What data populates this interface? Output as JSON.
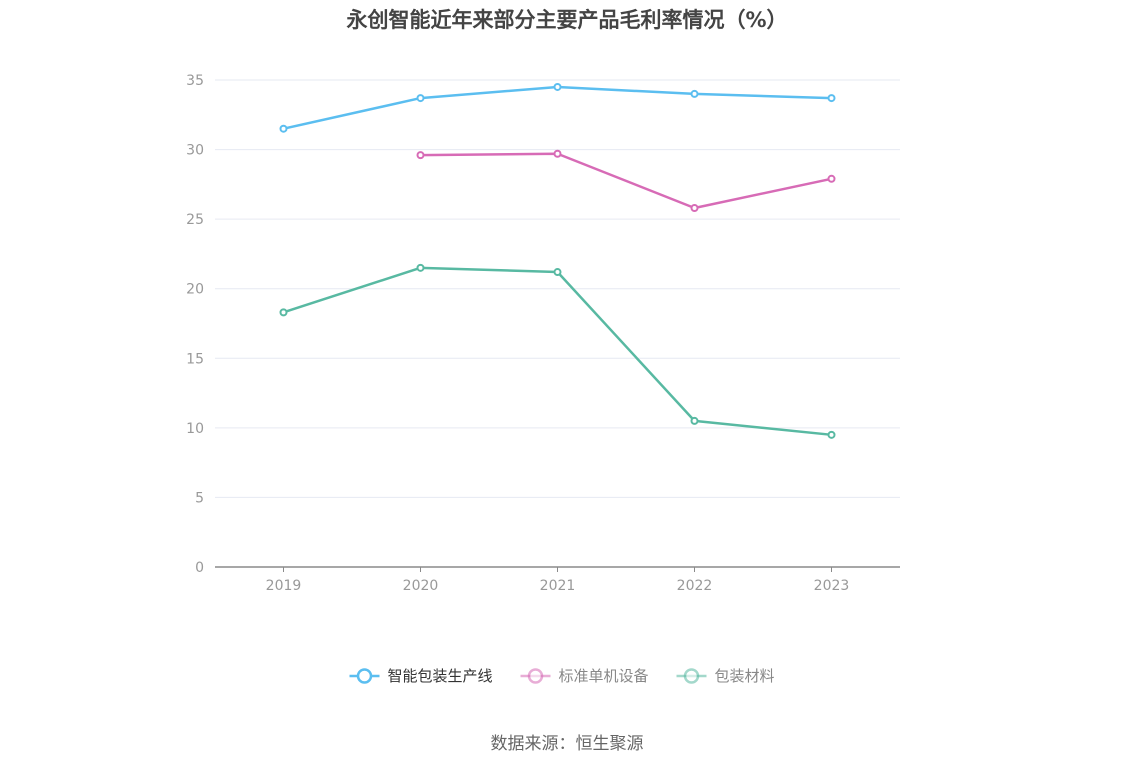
{
  "title": "永创智能近年来部分主要产品毛利率情况（%）",
  "source": "数据来源：恒生聚源",
  "chart_data": {
    "type": "line",
    "title": "永创智能近年来部分主要产品毛利率情况（%）",
    "categories": [
      "2019",
      "2020",
      "2021",
      "2022",
      "2023"
    ],
    "ylim": [
      0,
      35
    ],
    "yticks": [
      0,
      5,
      10,
      15,
      20,
      25,
      30,
      35
    ],
    "grid": true,
    "legend_position": "bottom-center",
    "series": [
      {
        "name": "智能包装生产线",
        "color": "#5bbef0",
        "values": [
          31.5,
          33.7,
          34.5,
          34.0,
          33.7
        ]
      },
      {
        "name": "标准单机设备",
        "color": "#d76bb6",
        "values": [
          null,
          29.6,
          29.7,
          25.8,
          27.9
        ]
      },
      {
        "name": "包装材料",
        "color": "#58b9a2",
        "values": [
          18.3,
          21.5,
          21.2,
          10.5,
          9.5
        ]
      }
    ]
  }
}
